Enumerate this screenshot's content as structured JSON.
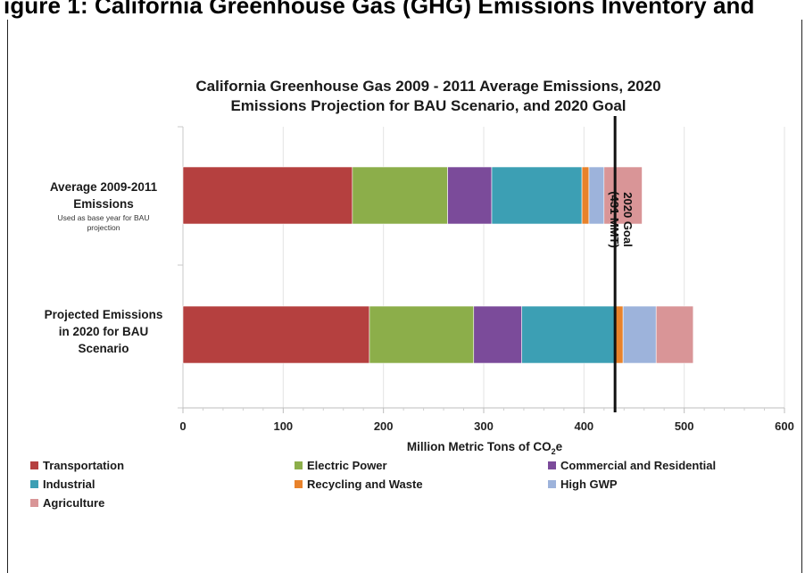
{
  "figure_heading": "igure 1: California Greenhouse Gas (GHG) Emissions Inventory and",
  "colors": {
    "Transportation": "#b5403f",
    "Electric Power": "#8cae4a",
    "Commercial and Residential": "#7b4b9a",
    "Industrial": "#3c9fb4",
    "Recycling and Waste": "#e8822b",
    "High GWP": "#9db3db",
    "Agriculture": "#d99597"
  },
  "chart_data": {
    "type": "bar",
    "orientation": "horizontal",
    "stacked": true,
    "title_lines": [
      "California Greenhouse Gas 2009 - 2011 Average Emissions, 2020",
      "Emissions Projection for BAU Scenario, and 2020 Goal"
    ],
    "categories": [
      {
        "label_lines": [
          "Average 2009-2011",
          "Emissions"
        ],
        "note_lines": [
          "Used as base year for BAU",
          "projection"
        ]
      },
      {
        "label_lines": [
          "Projected Emissions",
          "in 2020 for BAU",
          "Scenario"
        ],
        "note_lines": []
      }
    ],
    "series": [
      {
        "name": "Transportation",
        "values": [
          169,
          186
        ]
      },
      {
        "name": "Electric Power",
        "values": [
          95,
          104
        ]
      },
      {
        "name": "Commercial and Residential",
        "values": [
          44,
          48
        ]
      },
      {
        "name": "Industrial",
        "values": [
          90,
          93
        ]
      },
      {
        "name": "Recycling and Waste",
        "values": [
          7,
          8
        ]
      },
      {
        "name": "High GWP",
        "values": [
          15,
          33
        ]
      },
      {
        "name": "Agriculture",
        "values": [
          38,
          37
        ]
      }
    ],
    "legend_order": [
      "Transportation",
      "Electric Power",
      "Commercial and Residential",
      "Industrial",
      "Recycling and Waste",
      "High GWP",
      "Agriculture"
    ],
    "xlabel": "Million Metric Tons of CO",
    "xlabel_subscript": "2",
    "xlabel_suffix": "e",
    "xlim": [
      0,
      600
    ],
    "xticks": [
      0,
      100,
      200,
      300,
      400,
      500,
      600
    ],
    "xtick_labels": [
      "0",
      "100",
      "200",
      "300",
      "400",
      "500",
      "600"
    ],
    "reference_line": {
      "value": 431,
      "label_lines": [
        "2020 Goal",
        "(431 MMT)"
      ]
    },
    "grid": "vertical",
    "legend_position": "bottom"
  }
}
